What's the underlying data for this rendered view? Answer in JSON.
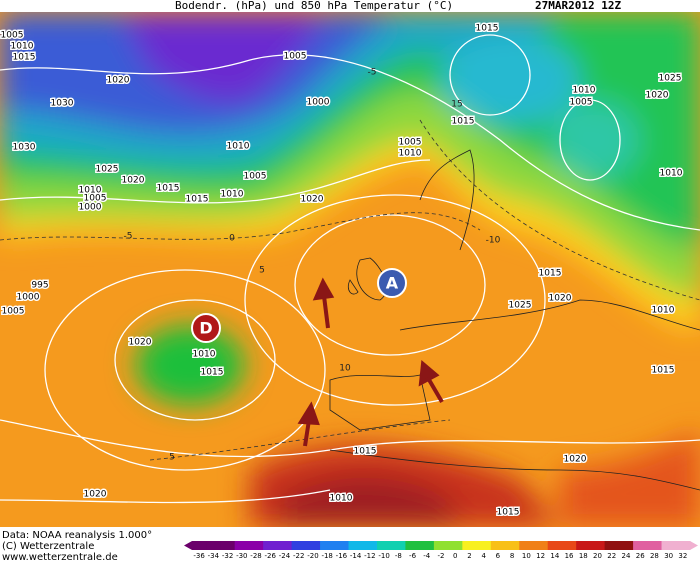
{
  "header": {
    "title": "Bodendr. (hPa) und 850 hPa Temperatur (°C)",
    "date": "27MAR2012 12Z"
  },
  "centers": [
    {
      "label": "A"
    },
    {
      "label": "D"
    }
  ],
  "isobar_labels": [
    "1005",
    "1010",
    "1015",
    "1020",
    "1030",
    "1005",
    "1000",
    "1010",
    "1005",
    "1015",
    "1010",
    "1015",
    "1025",
    "1020",
    "1030",
    "1010",
    "1005",
    "1000",
    "1020",
    "1005",
    "1010",
    "1015",
    "1015",
    "1010",
    "1005",
    "1025",
    "1020",
    "1010",
    "1015",
    "1025",
    "1020",
    "1010",
    "1015",
    "995",
    "1000",
    "1005",
    "1020",
    "1010",
    "1015",
    "1015",
    "1020",
    "1010",
    "1015",
    "1020"
  ],
  "temperature_labels": [
    "-5",
    "0",
    "5",
    "-10",
    "10",
    "5",
    "15",
    "-5"
  ],
  "credits": [
    "Data: NOAA reanalysis 1.000°",
    "(C) Wetterzentrale",
    "www.wetterzentrale.de"
  ],
  "colorbar": {
    "ticks": [
      -36,
      -34,
      -32,
      -30,
      -28,
      -26,
      -24,
      -22,
      -20,
      -18,
      -16,
      -14,
      -12,
      -10,
      -8,
      -6,
      -4,
      -2,
      0,
      2,
      4,
      6,
      8,
      10,
      12,
      14,
      16,
      18,
      20,
      22,
      24,
      26,
      28,
      30,
      32
    ]
  }
}
